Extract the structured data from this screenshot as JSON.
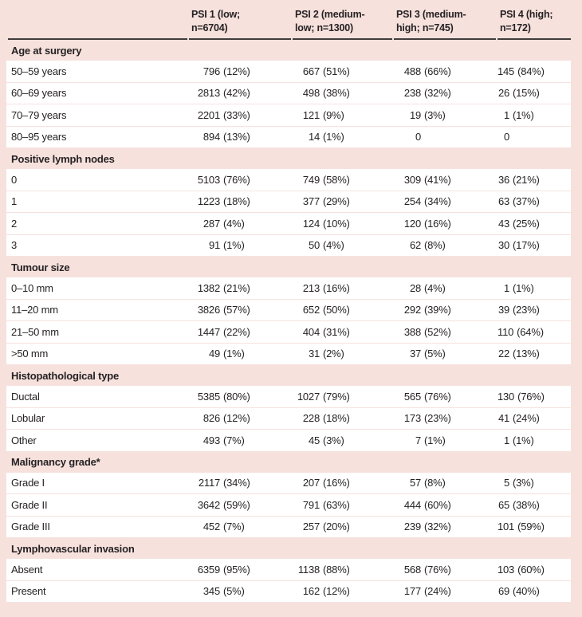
{
  "colors": {
    "background_pink": "#f6e1dd",
    "row_white": "#ffffff",
    "header_rule": "#403d3c",
    "text": "#262223"
  },
  "table": {
    "columns": [
      {
        "line1": "PSI 1 (low;",
        "line2": "n=6704)"
      },
      {
        "line1": "PSI 2 (medium-",
        "line2": "low; n=1300)"
      },
      {
        "line1": "PSI 3 (medium-",
        "line2": "high; n=745)"
      },
      {
        "line1": "PSI 4 (high;",
        "line2": "n=172)"
      }
    ],
    "sections": [
      {
        "title": "Age at surgery",
        "rows": [
          {
            "label": "50–59 years",
            "values": [
              "796 (12%)",
              "667 (51%)",
              "488 (66%)",
              "145 (84%)"
            ]
          },
          {
            "label": "60–69 years",
            "values": [
              "2813 (42%)",
              "498 (38%)",
              "238 (32%)",
              "26 (15%)"
            ]
          },
          {
            "label": "70–79 years",
            "values": [
              "2201 (33%)",
              "121 (9%)",
              "19 (3%)",
              "1 (1%)"
            ]
          },
          {
            "label": "80–95 years",
            "values": [
              "894 (13%)",
              "14 (1%)",
              "0",
              "0"
            ]
          }
        ]
      },
      {
        "title": "Positive lymph nodes",
        "rows": [
          {
            "label": "0",
            "values": [
              "5103 (76%)",
              "749 (58%)",
              "309 (41%)",
              "36 (21%)"
            ]
          },
          {
            "label": "1",
            "values": [
              "1223 (18%)",
              "377 (29%)",
              "254 (34%)",
              "63 (37%)"
            ]
          },
          {
            "label": "2",
            "values": [
              "287 (4%)",
              "124 (10%)",
              "120 (16%)",
              "43 (25%)"
            ]
          },
          {
            "label": "3",
            "values": [
              "91 (1%)",
              "50 (4%)",
              "62 (8%)",
              "30 (17%)"
            ]
          }
        ]
      },
      {
        "title": "Tumour size",
        "rows": [
          {
            "label": "0–10 mm",
            "values": [
              "1382 (21%)",
              "213 (16%)",
              "28 (4%)",
              "1 (1%)"
            ]
          },
          {
            "label": "11–20 mm",
            "values": [
              "3826 (57%)",
              "652 (50%)",
              "292 (39%)",
              "39 (23%)"
            ]
          },
          {
            "label": "21–50 mm",
            "values": [
              "1447 (22%)",
              "404 (31%)",
              "388 (52%)",
              "110 (64%)"
            ]
          },
          {
            "label": ">50 mm",
            "values": [
              "49 (1%)",
              "31 (2%)",
              "37 (5%)",
              "22 (13%)"
            ]
          }
        ]
      },
      {
        "title": "Histopathological type",
        "rows": [
          {
            "label": "Ductal",
            "values": [
              "5385 (80%)",
              "1027 (79%)",
              "565 (76%)",
              "130 (76%)"
            ]
          },
          {
            "label": "Lobular",
            "values": [
              "826 (12%)",
              "228 (18%)",
              "173 (23%)",
              "41 (24%)"
            ]
          },
          {
            "label": "Other",
            "values": [
              "493 (7%)",
              "45 (3%)",
              "7 (1%)",
              "1 (1%)"
            ]
          }
        ]
      },
      {
        "title": "Malignancy grade*",
        "rows": [
          {
            "label": "Grade I",
            "values": [
              "2117 (34%)",
              "207 (16%)",
              "57 (8%)",
              "5 (3%)"
            ]
          },
          {
            "label": "Grade II",
            "values": [
              "3642 (59%)",
              "791 (63%)",
              "444 (60%)",
              "65 (38%)"
            ]
          },
          {
            "label": "Grade III",
            "values": [
              "452 (7%)",
              "257 (20%)",
              "239 (32%)",
              "101 (59%)"
            ]
          }
        ]
      },
      {
        "title": "Lymphovascular invasion",
        "rows": [
          {
            "label": "Absent",
            "values": [
              "6359 (95%)",
              "1138 (88%)",
              "568 (76%)",
              "103 (60%)"
            ]
          },
          {
            "label": "Present",
            "values": [
              "345 (5%)",
              "162 (12%)",
              "177 (24%)",
              "69 (40%)"
            ]
          }
        ]
      }
    ]
  }
}
